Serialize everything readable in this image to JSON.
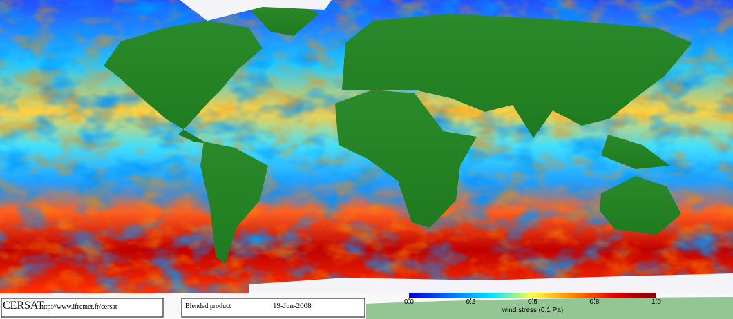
{
  "header": {
    "logo": "CERSAT",
    "url": "http://www.ifremer.fr/cersat"
  },
  "product": {
    "name": "Blended product",
    "date": "19-Jun-2008"
  },
  "colorbar": {
    "label": "wind stress (0.1 Pa)",
    "range": [
      0,
      1
    ],
    "ticks": [
      {
        "value": 0,
        "label": "0.0"
      },
      0.2,
      0.5,
      0.8,
      {
        "value": 1,
        "label": "1.0"
      }
    ],
    "colors": [
      "#0000c8",
      "#0070ff",
      "#00e0ff",
      "#ffff40",
      "#ff8000",
      "#e00000",
      "#800000"
    ]
  }
}
